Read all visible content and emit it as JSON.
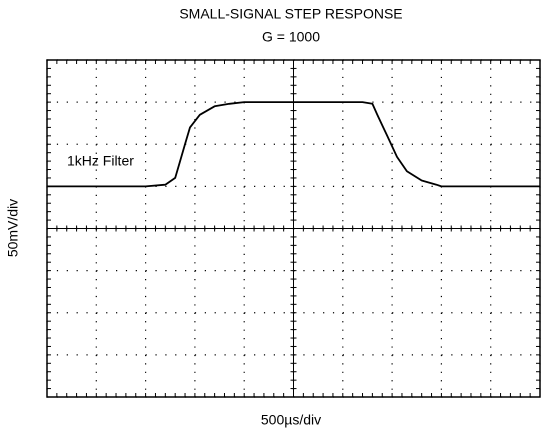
{
  "chart_data": {
    "type": "line",
    "title": "SMALL-SIGNAL STEP RESPONSE",
    "subtitle": "G = 1000",
    "x_label": "500µs/div",
    "y_label": "50mV/div",
    "annotation": "1kHz Filter",
    "x": [
      0,
      1000,
      1200,
      1300,
      1350,
      1400,
      1450,
      1550,
      1700,
      1850,
      2000,
      3200,
      3300,
      3350,
      3450,
      3550,
      3650,
      3800,
      3950,
      4000,
      5000
    ],
    "values": [
      50,
      50,
      52,
      60,
      80,
      100,
      120,
      135,
      145,
      148,
      150,
      150,
      148,
      135,
      110,
      85,
      68,
      57,
      52,
      50,
      50
    ],
    "color": "#000000",
    "xlim": [
      0,
      5000
    ],
    "ylim": [
      -200,
      200
    ],
    "xticks": [
      0,
      500,
      1000,
      1500,
      2000,
      2500,
      3000,
      3500,
      4000,
      4500,
      5000
    ],
    "yticks": [
      -200,
      -150,
      -100,
      -50,
      0,
      50,
      100,
      150,
      200
    ],
    "grid": true
  }
}
